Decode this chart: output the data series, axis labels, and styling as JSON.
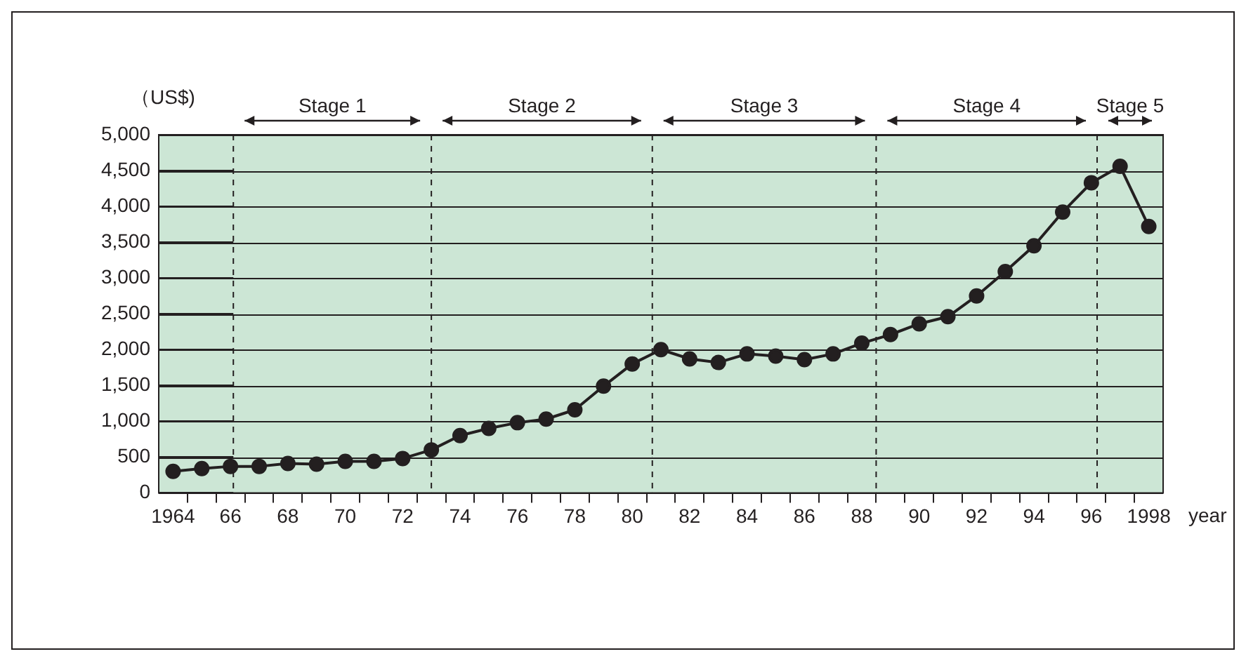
{
  "chart_data": {
    "type": "line",
    "ylabel": "（US$)",
    "xlabel": "year",
    "x": [
      1964,
      1965,
      1966,
      1967,
      1968,
      1969,
      1970,
      1971,
      1972,
      1973,
      1974,
      1975,
      1976,
      1977,
      1978,
      1979,
      1980,
      1981,
      1982,
      1983,
      1984,
      1985,
      1986,
      1987,
      1988,
      1989,
      1990,
      1991,
      1992,
      1993,
      1994,
      1995,
      1996,
      1997,
      1998
    ],
    "series": [
      {
        "color": "#231f20",
        "values": [
          300,
          340,
          370,
          370,
          410,
          400,
          440,
          440,
          480,
          600,
          800,
          900,
          980,
          1030,
          1160,
          1490,
          1800,
          2000,
          1870,
          1820,
          1940,
          1910,
          1860,
          1940,
          2090,
          2210,
          2360,
          2460,
          2750,
          3090,
          3450,
          3920,
          4330,
          4560,
          3720
        ]
      }
    ],
    "xlim": [
      1963.5,
      1998.5
    ],
    "xticks": [
      {
        "value": 1964,
        "label": "1964"
      },
      {
        "value": 1964.5,
        "label": null
      },
      {
        "value": 1965.5,
        "label": null
      },
      {
        "value": 1966,
        "label": "66"
      },
      {
        "value": 1966.5,
        "label": null
      },
      {
        "value": 1967.5,
        "label": null
      },
      {
        "value": 1968,
        "label": "68"
      },
      {
        "value": 1968.5,
        "label": null
      },
      {
        "value": 1969.5,
        "label": null
      },
      {
        "value": 1970,
        "label": "70"
      },
      {
        "value": 1970.5,
        "label": null
      },
      {
        "value": 1971.5,
        "label": null
      },
      {
        "value": 1972,
        "label": "72"
      },
      {
        "value": 1972.5,
        "label": null
      },
      {
        "value": 1973.5,
        "label": null
      },
      {
        "value": 1974,
        "label": "74"
      },
      {
        "value": 1974.5,
        "label": null
      },
      {
        "value": 1975.5,
        "label": null
      },
      {
        "value": 1976,
        "label": "76"
      },
      {
        "value": 1976.5,
        "label": null
      },
      {
        "value": 1977.5,
        "label": null
      },
      {
        "value": 1978,
        "label": "78"
      },
      {
        "value": 1978.5,
        "label": null
      },
      {
        "value": 1979.5,
        "label": null
      },
      {
        "value": 1980,
        "label": "80"
      },
      {
        "value": 1980.5,
        "label": null
      },
      {
        "value": 1981.5,
        "label": null
      },
      {
        "value": 1982,
        "label": "82"
      },
      {
        "value": 1982.5,
        "label": null
      },
      {
        "value": 1983.5,
        "label": null
      },
      {
        "value": 1984,
        "label": "84"
      },
      {
        "value": 1984.5,
        "label": null
      },
      {
        "value": 1985.5,
        "label": null
      },
      {
        "value": 1986,
        "label": "86"
      },
      {
        "value": 1986.5,
        "label": null
      },
      {
        "value": 1987.5,
        "label": null
      },
      {
        "value": 1988,
        "label": "88"
      },
      {
        "value": 1988.5,
        "label": null
      },
      {
        "value": 1989.5,
        "label": null
      },
      {
        "value": 1990,
        "label": "90"
      },
      {
        "value": 1990.5,
        "label": null
      },
      {
        "value": 1991.5,
        "label": null
      },
      {
        "value": 1992,
        "label": "92"
      },
      {
        "value": 1992.5,
        "label": null
      },
      {
        "value": 1993.5,
        "label": null
      },
      {
        "value": 1994,
        "label": "94"
      },
      {
        "value": 1994.5,
        "label": null
      },
      {
        "value": 1995.5,
        "label": null
      },
      {
        "value": 1996,
        "label": "96"
      },
      {
        "value": 1996.5,
        "label": null
      },
      {
        "value": 1997.5,
        "label": null
      },
      {
        "value": 1998,
        "label": "1998"
      }
    ],
    "ylim": [
      0,
      5000
    ],
    "yticks": [
      0,
      500,
      {
        "value": 1000,
        "label": "1,000"
      },
      {
        "value": 1500,
        "label": "1,500"
      },
      {
        "value": 2000,
        "label": "2,000"
      },
      {
        "value": 2500,
        "label": "2,500"
      },
      {
        "value": 3000,
        "label": "3,000"
      },
      {
        "value": 3500,
        "label": "3,500"
      },
      {
        "value": 4000,
        "label": "4,000"
      },
      {
        "value": 4500,
        "label": "4,500"
      },
      {
        "value": 5000,
        "label": "5,000"
      }
    ],
    "grid": "y",
    "marker": "circle",
    "line_style": "solid",
    "legend": false,
    "ref_lines": [
      {
        "axis": "x",
        "value": 1966.1,
        "line_style": "dashed"
      },
      {
        "axis": "x",
        "value": 1973.0,
        "line_style": "dashed"
      },
      {
        "axis": "x",
        "value": 1980.7,
        "line_style": "dashed"
      },
      {
        "axis": "x",
        "value": 1988.5,
        "line_style": "dashed"
      },
      {
        "axis": "x",
        "value": 1996.2,
        "line_style": "dashed"
      }
    ],
    "bands": [
      {
        "axis": "x",
        "from": 1966.1,
        "to": 1973.0,
        "label": "Stage 1",
        "color": "#cce6d5"
      },
      {
        "axis": "x",
        "from": 1973.0,
        "to": 1980.7,
        "label": "Stage 2",
        "color": "#cce6d5"
      },
      {
        "axis": "x",
        "from": 1980.7,
        "to": 1988.5,
        "label": "Stage 3",
        "color": "#cce6d5"
      },
      {
        "axis": "x",
        "from": 1988.5,
        "to": 1996.2,
        "label": "Stage 4",
        "color": "#cce6d5"
      },
      {
        "axis": "x",
        "from": 1996.2,
        "to": 1998.5,
        "label": "Stage 5",
        "color": "#cce6d5"
      }
    ]
  }
}
